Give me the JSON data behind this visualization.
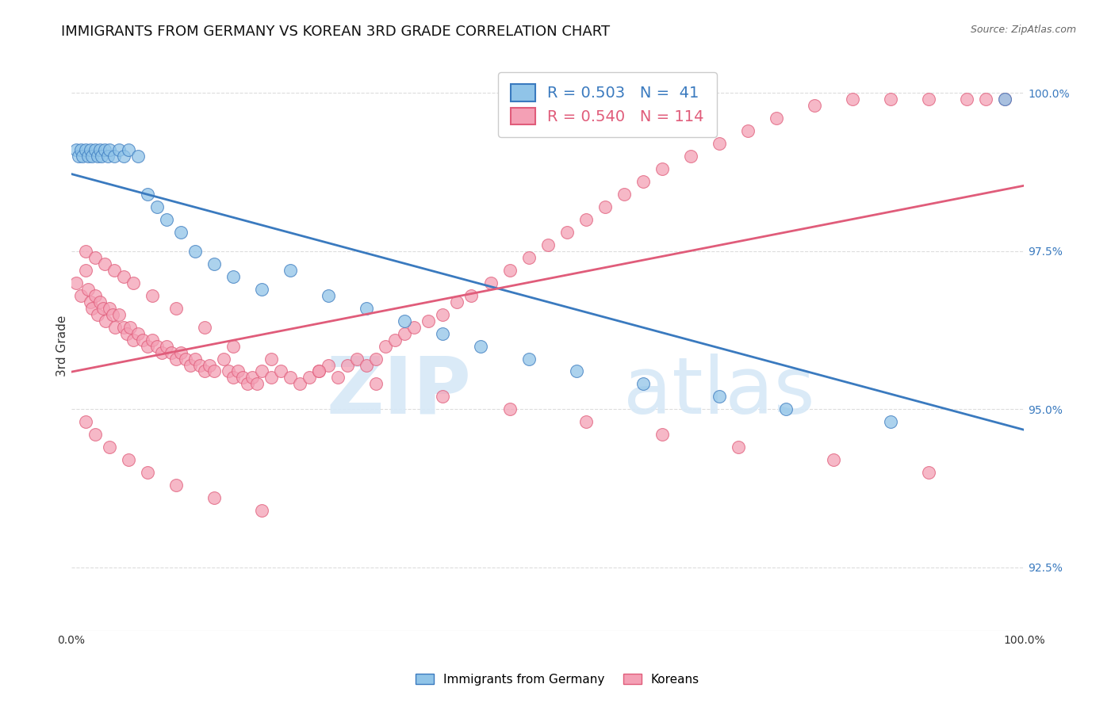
{
  "title": "IMMIGRANTS FROM GERMANY VS KOREAN 3RD GRADE CORRELATION CHART",
  "source": "Source: ZipAtlas.com",
  "ylabel": "3rd Grade",
  "xlim": [
    0.0,
    1.0
  ],
  "ylim": [
    0.915,
    1.005
  ],
  "yticks": [
    0.925,
    0.95,
    0.975,
    1.0
  ],
  "ytick_labels": [
    "92.5%",
    "95.0%",
    "97.5%",
    "100.0%"
  ],
  "xticks": [
    0.0,
    0.2,
    0.4,
    0.6,
    0.8,
    1.0
  ],
  "xtick_labels": [
    "0.0%",
    "",
    "",
    "",
    "",
    "100.0%"
  ],
  "legend_labels": [
    "Immigrants from Germany",
    "Koreans"
  ],
  "blue_R": 0.503,
  "blue_N": 41,
  "pink_R": 0.54,
  "pink_N": 114,
  "blue_color": "#90c4e8",
  "pink_color": "#f4a0b5",
  "blue_line_color": "#3a7abf",
  "pink_line_color": "#e05c7a",
  "background_color": "#ffffff",
  "grid_color": "#dddddd",
  "title_fontsize": 13,
  "label_fontsize": 11,
  "tick_fontsize": 10,
  "blue_scatter_x": [
    0.005,
    0.008,
    0.01,
    0.012,
    0.015,
    0.018,
    0.02,
    0.022,
    0.025,
    0.028,
    0.03,
    0.032,
    0.035,
    0.038,
    0.04,
    0.045,
    0.05,
    0.055,
    0.06,
    0.07,
    0.08,
    0.09,
    0.1,
    0.115,
    0.13,
    0.15,
    0.17,
    0.2,
    0.23,
    0.27,
    0.31,
    0.35,
    0.39,
    0.43,
    0.48,
    0.53,
    0.6,
    0.68,
    0.75,
    0.86,
    0.98
  ],
  "blue_scatter_y": [
    0.991,
    0.99,
    0.991,
    0.99,
    0.991,
    0.99,
    0.991,
    0.99,
    0.991,
    0.99,
    0.991,
    0.99,
    0.991,
    0.99,
    0.991,
    0.99,
    0.991,
    0.99,
    0.991,
    0.99,
    0.984,
    0.982,
    0.98,
    0.978,
    0.975,
    0.973,
    0.971,
    0.969,
    0.972,
    0.968,
    0.966,
    0.964,
    0.962,
    0.96,
    0.958,
    0.956,
    0.954,
    0.952,
    0.95,
    0.948,
    0.999
  ],
  "pink_scatter_x": [
    0.005,
    0.01,
    0.015,
    0.018,
    0.02,
    0.022,
    0.025,
    0.028,
    0.03,
    0.033,
    0.036,
    0.04,
    0.043,
    0.046,
    0.05,
    0.055,
    0.058,
    0.062,
    0.065,
    0.07,
    0.075,
    0.08,
    0.085,
    0.09,
    0.095,
    0.1,
    0.105,
    0.11,
    0.115,
    0.12,
    0.125,
    0.13,
    0.135,
    0.14,
    0.145,
    0.15,
    0.16,
    0.165,
    0.17,
    0.175,
    0.18,
    0.185,
    0.19,
    0.195,
    0.2,
    0.21,
    0.22,
    0.23,
    0.24,
    0.25,
    0.26,
    0.27,
    0.28,
    0.29,
    0.3,
    0.31,
    0.32,
    0.33,
    0.34,
    0.35,
    0.36,
    0.375,
    0.39,
    0.405,
    0.42,
    0.44,
    0.46,
    0.48,
    0.5,
    0.52,
    0.54,
    0.56,
    0.58,
    0.6,
    0.62,
    0.65,
    0.68,
    0.71,
    0.74,
    0.78,
    0.82,
    0.86,
    0.9,
    0.94,
    0.96,
    0.98,
    0.015,
    0.025,
    0.035,
    0.045,
    0.055,
    0.065,
    0.085,
    0.11,
    0.14,
    0.17,
    0.21,
    0.26,
    0.32,
    0.39,
    0.46,
    0.54,
    0.62,
    0.7,
    0.8,
    0.9,
    0.015,
    0.025,
    0.04,
    0.06,
    0.08,
    0.11,
    0.15,
    0.2
  ],
  "pink_scatter_y": [
    0.97,
    0.968,
    0.972,
    0.969,
    0.967,
    0.966,
    0.968,
    0.965,
    0.967,
    0.966,
    0.964,
    0.966,
    0.965,
    0.963,
    0.965,
    0.963,
    0.962,
    0.963,
    0.961,
    0.962,
    0.961,
    0.96,
    0.961,
    0.96,
    0.959,
    0.96,
    0.959,
    0.958,
    0.959,
    0.958,
    0.957,
    0.958,
    0.957,
    0.956,
    0.957,
    0.956,
    0.958,
    0.956,
    0.955,
    0.956,
    0.955,
    0.954,
    0.955,
    0.954,
    0.956,
    0.955,
    0.956,
    0.955,
    0.954,
    0.955,
    0.956,
    0.957,
    0.955,
    0.957,
    0.958,
    0.957,
    0.958,
    0.96,
    0.961,
    0.962,
    0.963,
    0.964,
    0.965,
    0.967,
    0.968,
    0.97,
    0.972,
    0.974,
    0.976,
    0.978,
    0.98,
    0.982,
    0.984,
    0.986,
    0.988,
    0.99,
    0.992,
    0.994,
    0.996,
    0.998,
    0.999,
    0.999,
    0.999,
    0.999,
    0.999,
    0.999,
    0.975,
    0.974,
    0.973,
    0.972,
    0.971,
    0.97,
    0.968,
    0.966,
    0.963,
    0.96,
    0.958,
    0.956,
    0.954,
    0.952,
    0.95,
    0.948,
    0.946,
    0.944,
    0.942,
    0.94,
    0.948,
    0.946,
    0.944,
    0.942,
    0.94,
    0.938,
    0.936,
    0.934
  ]
}
